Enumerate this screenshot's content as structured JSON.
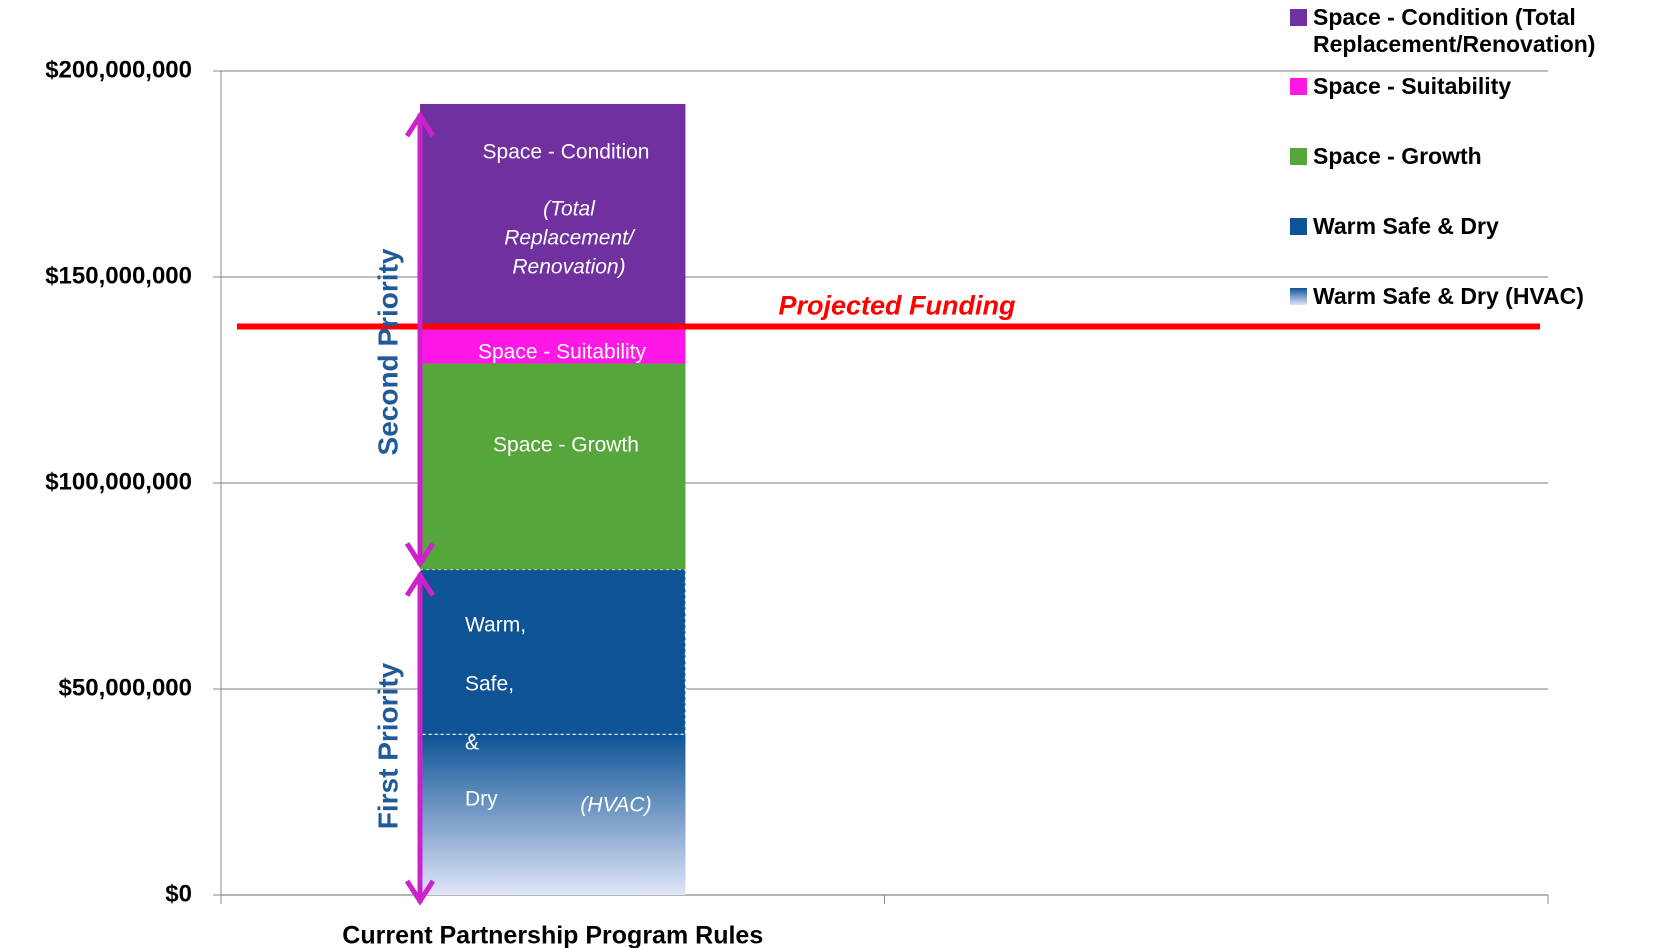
{
  "chart_data": {
    "type": "stacked-bar",
    "categories": [
      "Current Partnership Program Rules",
      null
    ],
    "series": [
      {
        "name": "Space - Condition (Total Replacement/Renovation)",
        "color": "#7030a0",
        "values": [
          54,
          null
        ]
      },
      {
        "name": "Space - Suitability",
        "color": "#ff17e6",
        "values": [
          9,
          null
        ]
      },
      {
        "name": "Space - Growth",
        "color": "#57a63c",
        "values": [
          50,
          null
        ]
      },
      {
        "name": "Warm Safe & Dry",
        "color": "#0e5395",
        "values": [
          40,
          null
        ]
      },
      {
        "name": "Warm Safe & Dry (HVAC)",
        "color": "#0e5395",
        "gradient": true,
        "values": [
          39,
          null
        ]
      }
    ],
    "ylim": [
      0,
      200
    ],
    "yticks": [
      {
        "value": 0,
        "label": "$0"
      },
      {
        "value": 50,
        "label": "$50,000,000"
      },
      {
        "value": 100,
        "label": "$100,000,000"
      },
      {
        "value": 150,
        "label": "$150,000,000"
      },
      {
        "value": 200,
        "label": "$200,000,000"
      }
    ],
    "grid": true,
    "legend": "top-right",
    "reference_line": {
      "label": "Projected Funding",
      "value": 138,
      "color": "#ff0000"
    },
    "priorities": [
      "Second Priority",
      "First Priority"
    ],
    "bar_texts": [
      "Space - Condition",
      "(Total",
      "Replacement/",
      "Renovation)",
      "Space - Suitability",
      "Space - Growth",
      "Warm,",
      "Safe,",
      "&",
      "Dry",
      "(HVAC)"
    ]
  }
}
